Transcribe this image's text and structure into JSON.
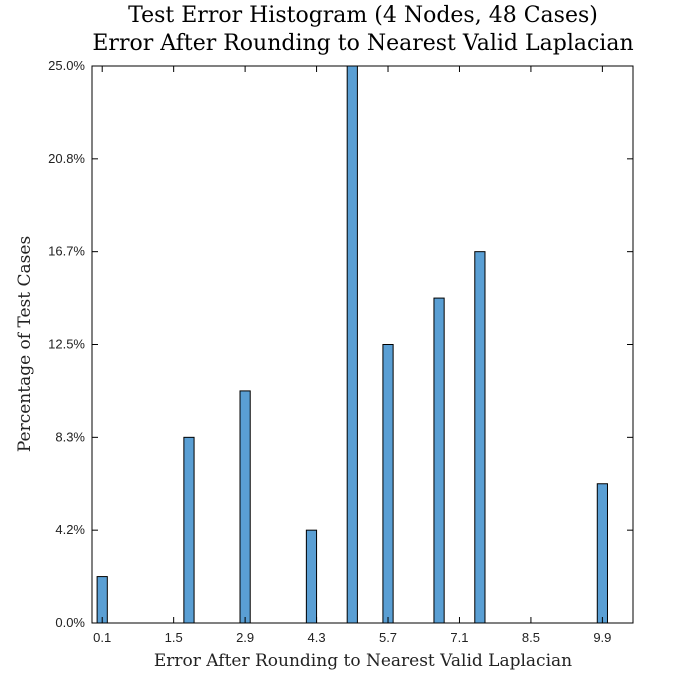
{
  "chart_data": {
    "type": "bar",
    "title": "Test Error Histogram (4 Nodes, 48 Cases)",
    "subtitle": "Error After Rounding to Nearest Valid Laplacian",
    "xlabel": "Error After Rounding to Nearest Valid Laplacian",
    "ylabel": "Percentage of Test Cases",
    "xlim": [
      -0.1,
      10.5
    ],
    "ylim": [
      0,
      25
    ],
    "x_ticks": [
      0.1,
      1.5,
      2.9,
      4.3,
      5.7,
      7.1,
      8.5,
      9.9
    ],
    "x_tick_labels": [
      "0.1",
      "1.5",
      "2.9",
      "4.3",
      "5.7",
      "7.1",
      "8.5",
      "9.9"
    ],
    "y_ticks": [
      0,
      4.1667,
      8.3333,
      12.5,
      16.6667,
      20.8333,
      25
    ],
    "y_tick_labels": [
      "0.0%",
      "4.2%",
      "8.3%",
      "12.5%",
      "16.7%",
      "20.8%",
      "25.0%"
    ],
    "bin_width": 0.2,
    "bars": [
      {
        "x": 0.1,
        "value": 2.0833
      },
      {
        "x": 1.8,
        "value": 8.3333
      },
      {
        "x": 2.9,
        "value": 10.4167
      },
      {
        "x": 4.2,
        "value": 4.1667
      },
      {
        "x": 5.0,
        "value": 25.0
      },
      {
        "x": 5.7,
        "value": 12.5
      },
      {
        "x": 6.7,
        "value": 14.5833
      },
      {
        "x": 7.5,
        "value": 16.6667
      },
      {
        "x": 9.9,
        "value": 6.25
      }
    ],
    "grid": false,
    "bar_color": "#5a9fd4"
  }
}
